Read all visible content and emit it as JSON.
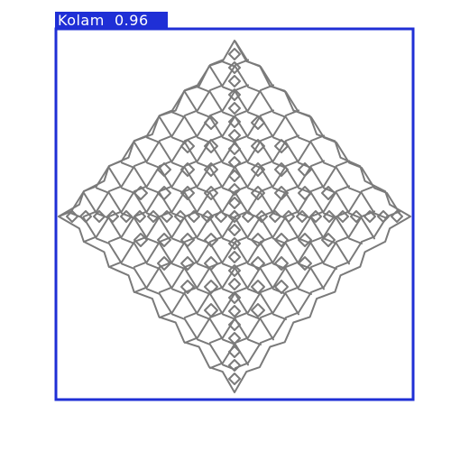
{
  "detection": {
    "class_label": "Kolam",
    "confidence": "0.96",
    "box_color": "#1f2fd6",
    "label_text_color": "#ffffff"
  },
  "pattern": {
    "name": "kolam-drawing",
    "stroke_color": "#7a7a7a"
  }
}
